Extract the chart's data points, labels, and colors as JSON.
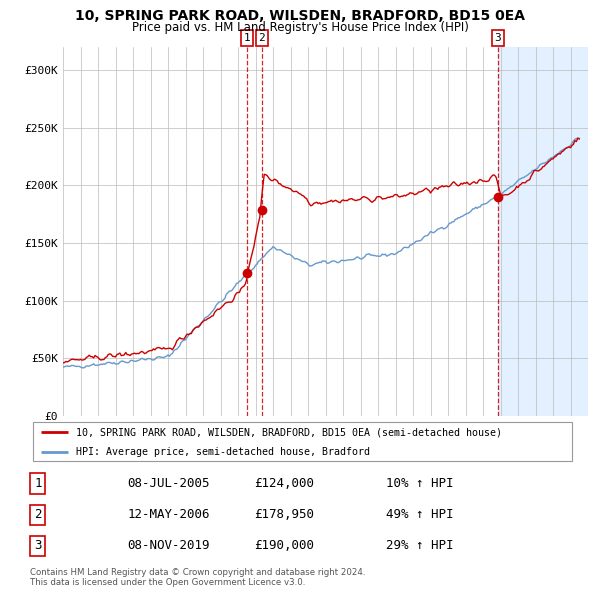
{
  "title": "10, SPRING PARK ROAD, WILSDEN, BRADFORD, BD15 0EA",
  "subtitle": "Price paid vs. HM Land Registry's House Price Index (HPI)",
  "xlim_start": 1995.0,
  "xlim_end": 2025.0,
  "ylim": [
    0,
    320000
  ],
  "yticks": [
    0,
    50000,
    100000,
    150000,
    200000,
    250000,
    300000
  ],
  "ytick_labels": [
    "£0",
    "£50K",
    "£100K",
    "£150K",
    "£200K",
    "£250K",
    "£300K"
  ],
  "legend_line1": "10, SPRING PARK ROAD, WILSDEN, BRADFORD, BD15 0EA (semi-detached house)",
  "legend_line2": "HPI: Average price, semi-detached house, Bradford",
  "transaction1_date": "08-JUL-2005",
  "transaction1_price": "£124,000",
  "transaction1_hpi": "10% ↑ HPI",
  "transaction2_date": "12-MAY-2006",
  "transaction2_price": "£178,950",
  "transaction2_hpi": "49% ↑ HPI",
  "transaction3_date": "08-NOV-2019",
  "transaction3_price": "£190,000",
  "transaction3_hpi": "29% ↑ HPI",
  "copyright_text": "Contains HM Land Registry data © Crown copyright and database right 2024.\nThis data is licensed under the Open Government Licence v3.0.",
  "red_color": "#cc0000",
  "blue_color": "#6699cc",
  "light_blue_bg": "#ddeeff",
  "marker1_x": 2005.52,
  "marker1_y": 124000,
  "marker2_x": 2006.37,
  "marker2_y": 178950,
  "marker3_x": 2019.86,
  "marker3_y": 190000,
  "vline1_x": 2005.52,
  "vline2_x": 2006.37,
  "vline3_x": 2019.86
}
